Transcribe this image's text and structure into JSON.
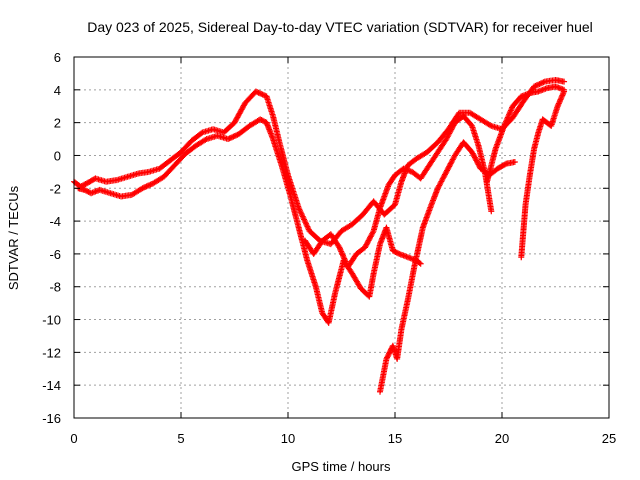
{
  "chart_data": {
    "type": "scatter",
    "title": "Day 023 of 2025, Sidereal Day-to-day VTEC variation (SDTVAR) for receiver huel",
    "xlabel": "GPS time / hours",
    "ylabel": "SDTVAR / TECUs",
    "xlim": [
      0,
      25
    ],
    "ylim": [
      -16,
      6
    ],
    "xticks": [
      "0",
      "5",
      "10",
      "15",
      "20",
      "25"
    ],
    "yticks": [
      "-16",
      "-14",
      "-12",
      "-10",
      "-8",
      "-6",
      "-4",
      "-2",
      "0",
      "2",
      "4",
      "6"
    ],
    "grid": true,
    "marker": "+",
    "series": [
      {
        "color": "#ff0000",
        "points": [
          [
            0.0,
            -1.6
          ],
          [
            0.3,
            -1.9
          ],
          [
            0.6,
            -1.7
          ],
          [
            1.0,
            -1.4
          ],
          [
            1.5,
            -1.6
          ],
          [
            2.0,
            -1.5
          ],
          [
            2.5,
            -1.3
          ],
          [
            3.0,
            -1.1
          ],
          [
            3.5,
            -1.0
          ],
          [
            4.0,
            -0.8
          ],
          [
            4.5,
            -0.3
          ],
          [
            5.0,
            0.2
          ],
          [
            5.5,
            0.9
          ],
          [
            6.0,
            1.4
          ],
          [
            6.5,
            1.6
          ],
          [
            7.0,
            1.4
          ],
          [
            7.5,
            2.0
          ],
          [
            8.0,
            3.2
          ],
          [
            8.5,
            3.9
          ],
          [
            9.0,
            3.6
          ],
          [
            9.3,
            2.4
          ],
          [
            9.6,
            0.8
          ],
          [
            10.0,
            -1.2
          ],
          [
            10.5,
            -3.2
          ],
          [
            11.0,
            -4.6
          ],
          [
            11.5,
            -5.2
          ],
          [
            12.0,
            -5.4
          ],
          [
            12.5,
            -4.6
          ],
          [
            13.0,
            -4.2
          ],
          [
            13.5,
            -3.6
          ],
          [
            14.0,
            -2.8
          ],
          [
            14.5,
            -3.6
          ],
          [
            15.0,
            -3.0
          ],
          [
            15.3,
            -1.6
          ],
          [
            15.6,
            -0.6
          ],
          [
            16.0,
            -0.2
          ],
          [
            16.5,
            0.2
          ],
          [
            17.0,
            0.8
          ],
          [
            17.5,
            1.6
          ],
          [
            18.0,
            2.6
          ],
          [
            18.5,
            2.6
          ],
          [
            19.0,
            2.2
          ],
          [
            19.5,
            1.8
          ],
          [
            20.0,
            1.6
          ],
          [
            20.5,
            2.3
          ],
          [
            21.0,
            3.3
          ],
          [
            21.5,
            4.2
          ],
          [
            22.0,
            4.5
          ],
          [
            22.5,
            4.6
          ],
          [
            22.9,
            4.5
          ]
        ]
      },
      {
        "color": "#ff0000",
        "points": [
          [
            0.2,
            -2.0
          ],
          [
            0.5,
            -2.1
          ],
          [
            0.8,
            -2.3
          ],
          [
            1.2,
            -2.1
          ],
          [
            1.7,
            -2.3
          ],
          [
            2.2,
            -2.5
          ],
          [
            2.7,
            -2.4
          ],
          [
            3.2,
            -2.0
          ],
          [
            3.7,
            -1.7
          ],
          [
            4.2,
            -1.3
          ],
          [
            4.7,
            -0.6
          ],
          [
            5.2,
            0.1
          ],
          [
            5.7,
            0.6
          ],
          [
            6.2,
            1.0
          ],
          [
            6.7,
            1.2
          ],
          [
            7.2,
            1.0
          ],
          [
            7.7,
            1.3
          ],
          [
            8.2,
            1.8
          ],
          [
            8.7,
            2.2
          ],
          [
            9.0,
            2.0
          ],
          [
            9.3,
            1.0
          ],
          [
            9.7,
            -0.6
          ],
          [
            10.1,
            -2.4
          ],
          [
            10.5,
            -4.4
          ],
          [
            10.9,
            -6.4
          ],
          [
            11.3,
            -8.0
          ],
          [
            11.6,
            -9.6
          ],
          [
            11.9,
            -10.2
          ],
          [
            12.2,
            -8.4
          ],
          [
            12.6,
            -6.4
          ],
          [
            13.0,
            -7.2
          ],
          [
            13.4,
            -8.1
          ],
          [
            13.8,
            -8.6
          ],
          [
            14.0,
            -7.2
          ],
          [
            14.3,
            -5.4
          ],
          [
            14.6,
            -4.4
          ],
          [
            14.9,
            -5.8
          ],
          [
            15.2,
            -6.0
          ],
          [
            15.6,
            -6.2
          ],
          [
            16.0,
            -6.4
          ],
          [
            16.2,
            -6.6
          ]
        ]
      },
      {
        "color": "#ff0000",
        "points": [
          [
            10.8,
            -5.2
          ],
          [
            11.2,
            -6.0
          ],
          [
            11.6,
            -5.2
          ],
          [
            12.0,
            -4.8
          ],
          [
            12.4,
            -5.6
          ],
          [
            12.8,
            -6.8
          ],
          [
            13.2,
            -6.0
          ],
          [
            13.6,
            -5.6
          ],
          [
            14.0,
            -4.6
          ],
          [
            14.3,
            -3.2
          ],
          [
            14.7,
            -1.8
          ],
          [
            15.0,
            -1.2
          ],
          [
            15.4,
            -0.8
          ],
          [
            15.8,
            -1.0
          ],
          [
            16.2,
            -1.4
          ],
          [
            16.6,
            -0.6
          ],
          [
            17.0,
            0.2
          ],
          [
            17.4,
            1.0
          ],
          [
            17.8,
            2.0
          ],
          [
            18.2,
            2.4
          ],
          [
            18.6,
            1.8
          ],
          [
            18.9,
            0.6
          ],
          [
            19.2,
            -1.0
          ],
          [
            19.5,
            -3.4
          ]
        ]
      },
      {
        "color": "#ff0000",
        "points": [
          [
            14.3,
            -14.4
          ],
          [
            14.6,
            -12.4
          ],
          [
            14.9,
            -11.6
          ],
          [
            15.1,
            -12.4
          ],
          [
            15.3,
            -10.6
          ],
          [
            15.6,
            -8.8
          ],
          [
            15.9,
            -6.8
          ],
          [
            16.1,
            -5.6
          ],
          [
            16.3,
            -4.4
          ],
          [
            16.7,
            -3.0
          ],
          [
            17.0,
            -2.0
          ],
          [
            17.4,
            -1.0
          ],
          [
            17.8,
            0.0
          ],
          [
            18.2,
            0.8
          ],
          [
            18.6,
            0.2
          ],
          [
            19.0,
            -0.8
          ],
          [
            19.4,
            -1.2
          ],
          [
            19.8,
            -0.8
          ],
          [
            20.2,
            -0.5
          ],
          [
            20.6,
            -0.4
          ]
        ]
      },
      {
        "color": "#ff0000",
        "points": [
          [
            20.9,
            -6.2
          ],
          [
            21.0,
            -4.6
          ],
          [
            21.1,
            -3.0
          ],
          [
            21.3,
            -1.2
          ],
          [
            21.5,
            0.4
          ],
          [
            21.7,
            1.4
          ],
          [
            21.9,
            2.2
          ],
          [
            22.1,
            2.0
          ],
          [
            22.3,
            1.8
          ],
          [
            22.6,
            3.0
          ],
          [
            22.9,
            3.9
          ]
        ]
      },
      {
        "color": "#ff0000",
        "points": [
          [
            19.3,
            -1.6
          ],
          [
            19.7,
            0.4
          ],
          [
            20.1,
            1.8
          ],
          [
            20.5,
            3.0
          ],
          [
            20.9,
            3.6
          ],
          [
            21.3,
            3.8
          ],
          [
            21.7,
            3.9
          ],
          [
            22.1,
            4.1
          ],
          [
            22.5,
            4.2
          ],
          [
            22.9,
            4.0
          ]
        ]
      }
    ]
  }
}
